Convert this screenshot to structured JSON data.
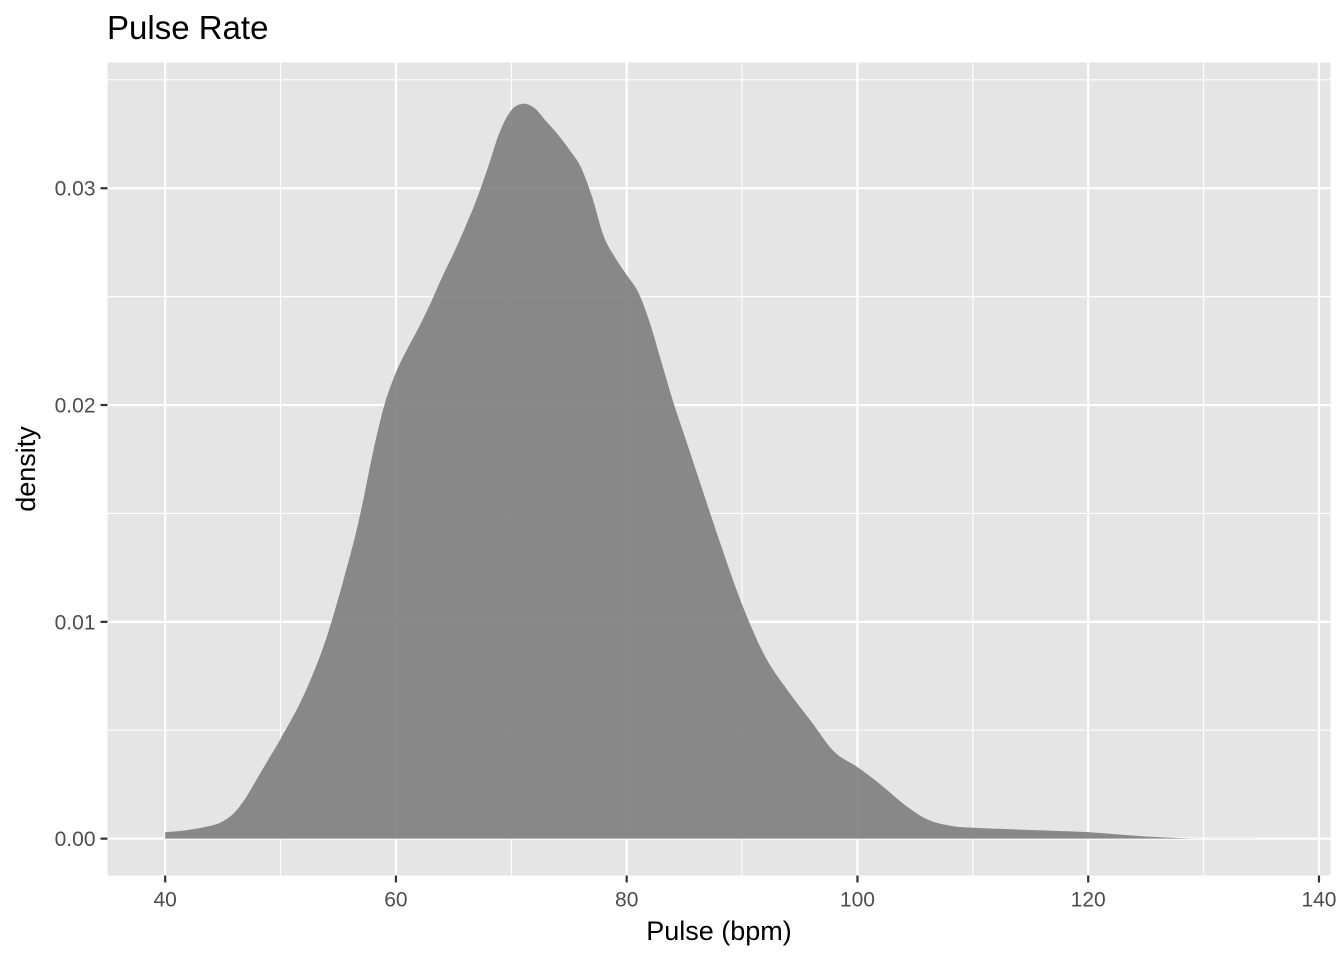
{
  "chart_data": {
    "type": "area",
    "title": "Pulse Rate",
    "xlabel": "Pulse (bpm)",
    "ylabel": "density",
    "xlim": [
      35,
      141
    ],
    "ylim": [
      -0.0017,
      0.0358
    ],
    "x_ticks": [
      40,
      60,
      80,
      100,
      120,
      140
    ],
    "x_tick_labels": [
      "40",
      "60",
      "80",
      "100",
      "120",
      "140"
    ],
    "y_ticks": [
      0.0,
      0.01,
      0.02,
      0.03
    ],
    "y_tick_labels": [
      "0.00",
      "0.01",
      "0.02",
      "0.03"
    ],
    "grid": true,
    "colors": {
      "panel_background": "#e5e5e5",
      "grid": "#ffffff",
      "fill": "#7a7a7a"
    },
    "series": [
      {
        "x": [
          40,
          42,
          44,
          45,
          46,
          47,
          48,
          49,
          50,
          52,
          54,
          56,
          57,
          58,
          59,
          60,
          61,
          62,
          63,
          64,
          65,
          66,
          67,
          68,
          69,
          70,
          71,
          72,
          73,
          74,
          75,
          76,
          77,
          78,
          79,
          80,
          81,
          82,
          83,
          84,
          85,
          86,
          88,
          90,
          92,
          94,
          96,
          98,
          100,
          102,
          104,
          106,
          108,
          110,
          115,
          120,
          125,
          130,
          136
        ],
        "values": [
          0.0003,
          0.0004,
          0.0006,
          0.0008,
          0.0012,
          0.0019,
          0.0028,
          0.0037,
          0.0046,
          0.0066,
          0.0093,
          0.013,
          0.0152,
          0.0178,
          0.02,
          0.0215,
          0.0226,
          0.0236,
          0.0247,
          0.0259,
          0.027,
          0.0282,
          0.0295,
          0.031,
          0.0326,
          0.0336,
          0.0339,
          0.0337,
          0.0331,
          0.0325,
          0.0318,
          0.031,
          0.0296,
          0.0278,
          0.0268,
          0.026,
          0.0252,
          0.0238,
          0.022,
          0.0202,
          0.0186,
          0.017,
          0.0138,
          0.0108,
          0.0084,
          0.0068,
          0.0054,
          0.004,
          0.0033,
          0.0025,
          0.0016,
          0.0009,
          0.0006,
          0.0005,
          0.0004,
          0.0003,
          0.0001,
          0.0,
          0.0
        ]
      }
    ]
  }
}
